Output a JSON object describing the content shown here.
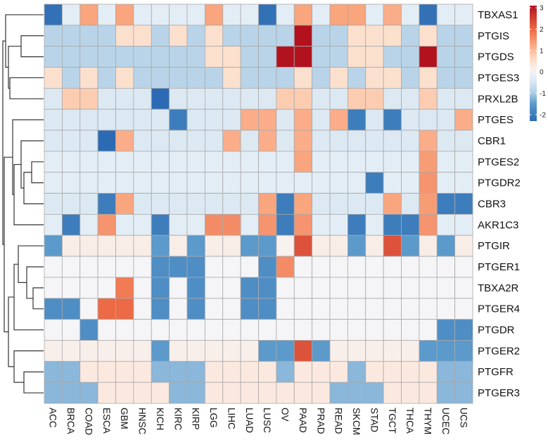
{
  "chart_data": {
    "type": "heatmap",
    "title": "",
    "columns": [
      "ACC",
      "BRCA",
      "COAD",
      "ESCA",
      "GBM",
      "HNSC",
      "KICH",
      "KIRC",
      "KIRP",
      "LGG",
      "LIHC",
      "LUAD",
      "LUSC",
      "OV",
      "PAAD",
      "PRAD",
      "READ",
      "SKCM",
      "STAD",
      "TGCT",
      "THCA",
      "THYM",
      "UCEC",
      "UCS"
    ],
    "rows": [
      "TBXAS1",
      "PTGIS",
      "PTGDS",
      "PTGES3",
      "PRXL2B",
      "PTGES",
      "CBR1",
      "PTGES2",
      "PTGDR2",
      "CBR3",
      "AKR1C3",
      "PTGIR",
      "PTGER1",
      "TBXA2R",
      "PTGER4",
      "PTGDR",
      "PTGER2",
      "PTGFR",
      "PTGER3"
    ],
    "values": [
      [
        -2.2,
        -0.3,
        1.3,
        -0.3,
        1.3,
        -0.3,
        -0.3,
        -0.3,
        -0.3,
        1.3,
        -0.3,
        -0.3,
        -2.2,
        -0.3,
        1.3,
        -0.3,
        1.3,
        1.3,
        -0.3,
        1.2,
        -0.3,
        -2.2,
        -0.3,
        -0.3
      ],
      [
        -0.9,
        -0.9,
        -0.9,
        -0.9,
        0.5,
        0.5,
        -0.9,
        0.5,
        -0.9,
        0.5,
        -0.9,
        -0.9,
        -0.9,
        -0.9,
        3.1,
        -0.9,
        -0.9,
        0.5,
        0.5,
        0.5,
        -0.9,
        0.5,
        -0.9,
        -0.9
      ],
      [
        -0.9,
        -0.9,
        -0.9,
        -0.9,
        -0.9,
        -0.9,
        -0.9,
        -0.9,
        -0.9,
        0.5,
        0.5,
        -0.9,
        -0.9,
        3.1,
        3.1,
        -0.9,
        -0.9,
        0.5,
        0.5,
        -0.9,
        -0.9,
        3.1,
        -0.9,
        -0.9
      ],
      [
        0.5,
        -0.9,
        0.5,
        -0.9,
        0.5,
        -0.9,
        -0.9,
        -0.9,
        -0.9,
        -0.9,
        0.5,
        -0.9,
        -0.9,
        -0.9,
        0.5,
        -0.9,
        0.5,
        -0.9,
        0.5,
        0.5,
        -0.9,
        0.5,
        -0.9,
        -0.9
      ],
      [
        -0.4,
        0.8,
        0.8,
        -0.4,
        -0.4,
        -0.4,
        -2.3,
        -0.4,
        -0.4,
        -0.4,
        -0.4,
        -0.4,
        -0.4,
        0.8,
        0.8,
        -0.4,
        -0.4,
        0.8,
        0.8,
        -0.4,
        -0.4,
        0.8,
        -0.4,
        -0.4
      ],
      [
        -0.4,
        -0.4,
        -0.4,
        -0.4,
        -0.4,
        -0.4,
        -0.4,
        -2.0,
        -0.4,
        -0.4,
        -0.4,
        1.2,
        1.2,
        -0.4,
        1.2,
        -0.4,
        1.2,
        -2.0,
        -0.4,
        -2.0,
        -0.4,
        -0.4,
        -0.4,
        1.2
      ],
      [
        -0.4,
        -0.4,
        -0.4,
        -2.3,
        1.2,
        -0.4,
        -0.4,
        -0.4,
        -0.4,
        -0.4,
        1.2,
        -0.4,
        1.2,
        -0.4,
        1.2,
        -0.4,
        -0.4,
        -0.4,
        -0.4,
        -0.4,
        -0.4,
        1.2,
        -0.4,
        -0.4
      ],
      [
        -0.3,
        -0.3,
        -0.3,
        -0.3,
        -0.3,
        -0.3,
        -0.3,
        -0.3,
        -0.3,
        -0.3,
        -0.3,
        -0.3,
        -0.3,
        -0.3,
        1.3,
        -0.3,
        -0.3,
        -0.3,
        -0.3,
        -0.3,
        -0.3,
        1.4,
        -0.3,
        -0.3
      ],
      [
        -0.3,
        -0.3,
        -0.3,
        -0.3,
        -0.3,
        -0.3,
        -0.3,
        -0.3,
        -0.3,
        -0.3,
        -0.3,
        -0.3,
        -0.3,
        -0.3,
        -0.3,
        -0.3,
        -0.3,
        -0.3,
        -2.0,
        -0.3,
        -0.3,
        1.5,
        -0.3,
        -0.3
      ],
      [
        -0.4,
        -0.4,
        -0.4,
        -2.0,
        1.3,
        -0.4,
        -0.4,
        -0.4,
        -0.4,
        -0.4,
        -0.4,
        -0.4,
        1.3,
        -2.0,
        1.3,
        -0.4,
        -0.4,
        -0.4,
        -0.4,
        1.3,
        -0.4,
        1.4,
        -2.0,
        -2.0
      ],
      [
        -0.3,
        -2.0,
        -0.3,
        1.5,
        -0.3,
        -0.3,
        -2.0,
        -0.3,
        -0.3,
        1.6,
        1.6,
        -0.3,
        1.5,
        -2.0,
        1.5,
        -0.3,
        -0.3,
        -2.0,
        -0.3,
        -2.0,
        -2.0,
        1.5,
        -0.3,
        -0.3
      ],
      [
        -1.5,
        0.2,
        0.2,
        0.2,
        0.2,
        0.2,
        -1.5,
        0.2,
        -1.5,
        0.2,
        0.2,
        -1.5,
        -1.5,
        0.1,
        2.3,
        0.2,
        0.2,
        -1.5,
        0.2,
        2.3,
        -1.5,
        0.2,
        -1.5,
        0.2
      ],
      [
        0,
        0,
        0,
        0,
        0,
        0,
        -1.7,
        -1.7,
        -1.7,
        0,
        0,
        0,
        -1.7,
        1.6,
        0,
        0,
        0,
        0,
        0,
        0,
        0,
        0,
        0,
        0
      ],
      [
        0,
        0,
        0,
        0,
        1.8,
        0,
        -1.7,
        0,
        -1.7,
        0,
        0,
        -1.7,
        -1.7,
        0,
        0,
        0,
        0,
        0,
        0,
        0,
        0,
        0,
        0,
        0
      ],
      [
        -1.7,
        -1.7,
        0,
        2.0,
        2.0,
        0,
        -1.7,
        0,
        -1.7,
        0,
        0,
        -1.7,
        -1.7,
        0,
        0,
        0,
        0,
        0,
        0,
        0,
        0,
        0,
        0,
        0
      ],
      [
        0,
        0,
        -1.7,
        0,
        0,
        0,
        0,
        0,
        0,
        0,
        0,
        0,
        0,
        0,
        0,
        0,
        0,
        0,
        0,
        0,
        0,
        0,
        -1.7,
        -1.7
      ],
      [
        0.15,
        0.15,
        0.15,
        0.15,
        0.15,
        0.15,
        -1.5,
        0.15,
        0.15,
        0.15,
        0.15,
        0.15,
        -1.5,
        -1.5,
        2.3,
        -1.5,
        0.15,
        0.15,
        0.15,
        0.15,
        0.15,
        -1.5,
        -1.5,
        -1.5
      ],
      [
        -1.2,
        -1.2,
        0.3,
        0.3,
        0.3,
        0.3,
        -1.2,
        -1.2,
        -1.2,
        0.3,
        0.3,
        0.3,
        0.3,
        -1.2,
        0.3,
        0.3,
        0.3,
        -1.2,
        0.3,
        0.3,
        0.3,
        0.3,
        -1.2,
        -1.2
      ],
      [
        -1.2,
        -1.2,
        -1.2,
        0.3,
        0.3,
        0.3,
        0.3,
        -1.2,
        -1.2,
        0.3,
        0.3,
        0.3,
        0.3,
        0.3,
        0.3,
        0.3,
        -1.2,
        -1.2,
        -1.2,
        0.3,
        0.3,
        0.3,
        -1.2,
        -1.2
      ]
    ],
    "color_scale": {
      "min": -2.3,
      "max": 3.1,
      "low_color": "#2c6bb3",
      "mid_color": "#f5f5f7",
      "high_color": "#b2121e"
    },
    "legend": {
      "ticks": [
        "3",
        "2",
        "1",
        "0",
        "-1",
        "-2"
      ],
      "tick_values": [
        3,
        2,
        1,
        0,
        -1,
        -2
      ],
      "placement": "top-right"
    },
    "row_dendrogram": true,
    "grid": true
  }
}
